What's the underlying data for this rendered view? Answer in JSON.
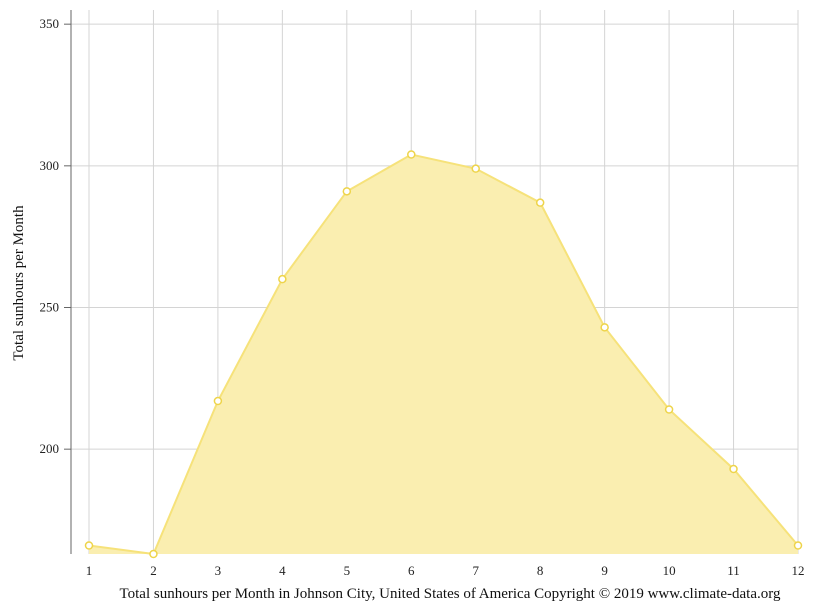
{
  "colors": {
    "area_fill": "#faeeb0",
    "line": "#f6e27a",
    "point_stroke": "#eed44a",
    "point_fill": "#ffffff"
  },
  "chart_data": {
    "type": "area",
    "title": "",
    "xlabel": "Total sunhours per Month in Johnson City, United States of America Copyright © 2019 www.climate-data.org",
    "ylabel": "Total sunhours per Month",
    "x": [
      1,
      2,
      3,
      4,
      5,
      6,
      7,
      8,
      9,
      10,
      11,
      12
    ],
    "values": [
      166,
      163,
      217,
      260,
      291,
      304,
      299,
      287,
      243,
      214,
      193,
      166
    ],
    "xlim": [
      1,
      12
    ],
    "ylim": [
      163,
      355
    ],
    "yticks": [
      200,
      250,
      300,
      350
    ],
    "grid": true,
    "legend": "none"
  }
}
